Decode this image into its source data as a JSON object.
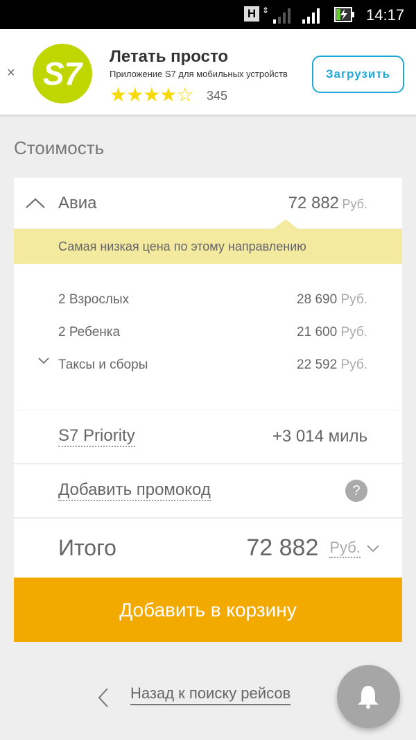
{
  "status_bar": {
    "network": "H",
    "time": "14:17"
  },
  "banner": {
    "close": "×",
    "logo": "S7",
    "title": "Летать просто",
    "subtitle": "Приложение S7 для мобильных устройств",
    "rating": 4,
    "stars": "★★★★☆",
    "reviews": "345",
    "download_label": "Загрузить"
  },
  "section_title": "Стоимость",
  "avia": {
    "label": "Авиа",
    "amount": "72 882",
    "currency": "Руб.",
    "notice": "Самая низкая цена по этому направлению",
    "items": [
      {
        "label": "2 Взрослых",
        "amount": "28 690",
        "currency": "Руб."
      },
      {
        "label": "2 Ребенка",
        "amount": "21 600",
        "currency": "Руб."
      },
      {
        "label": "Таксы и сборы",
        "amount": "22 592",
        "currency": "Руб."
      }
    ]
  },
  "priority": {
    "label": "S7 Priority",
    "value": "+3 014 миль"
  },
  "promo": {
    "label": "Добавить промокод",
    "help": "?"
  },
  "total": {
    "label": "Итого",
    "amount": "72 882",
    "currency": "Руб."
  },
  "cart_button": "Добавить в корзину",
  "back_link": "Назад к поиску рейсов",
  "colors": {
    "accent": "#f2a900",
    "notice_bg": "#f3eaa0",
    "logo": "#bfd600",
    "download": "#1fa8d6"
  }
}
